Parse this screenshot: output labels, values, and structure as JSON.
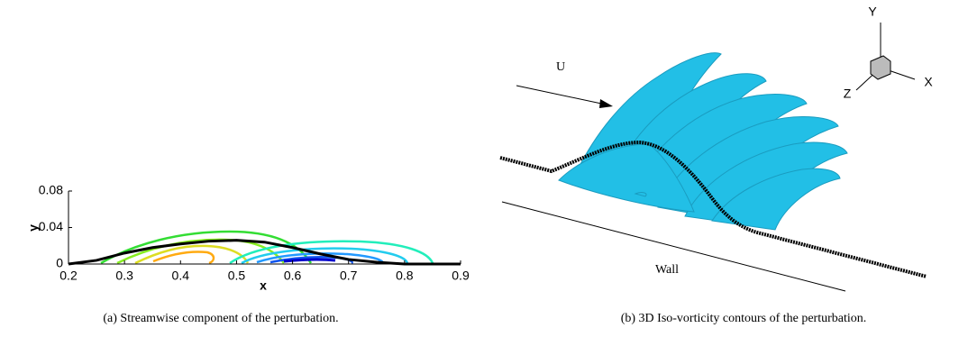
{
  "chart_data": {
    "type": "line",
    "xlabel": "x",
    "ylabel": "y",
    "x": [
      0.2,
      0.25,
      0.3,
      0.35,
      0.4,
      0.45,
      0.5,
      0.55,
      0.6,
      0.65,
      0.7,
      0.75,
      0.8,
      0.9
    ],
    "values": [
      0,
      0.004,
      0.012,
      0.018,
      0.022,
      0.025,
      0.026,
      0.024,
      0.018,
      0.011,
      0.005,
      0.002,
      0,
      0
    ],
    "color": "#000000",
    "xlim": [
      0.2,
      0.9
    ],
    "xticks": [
      0.2,
      0.3,
      0.4,
      0.5,
      0.6,
      0.7,
      0.8,
      0.9
    ],
    "ylim": [
      0,
      0.08
    ],
    "yticks": [
      0,
      0.04,
      0.08
    ]
  },
  "panel_b": {
    "flow_label": "U",
    "wall_label": "Wall",
    "axes": {
      "y": "Y",
      "x": "X",
      "z": "Z"
    }
  },
  "captions": [
    "(a)  Streamwise component of the perturbation.",
    "(b)  3D Iso-vorticity contours of the perturbation."
  ]
}
